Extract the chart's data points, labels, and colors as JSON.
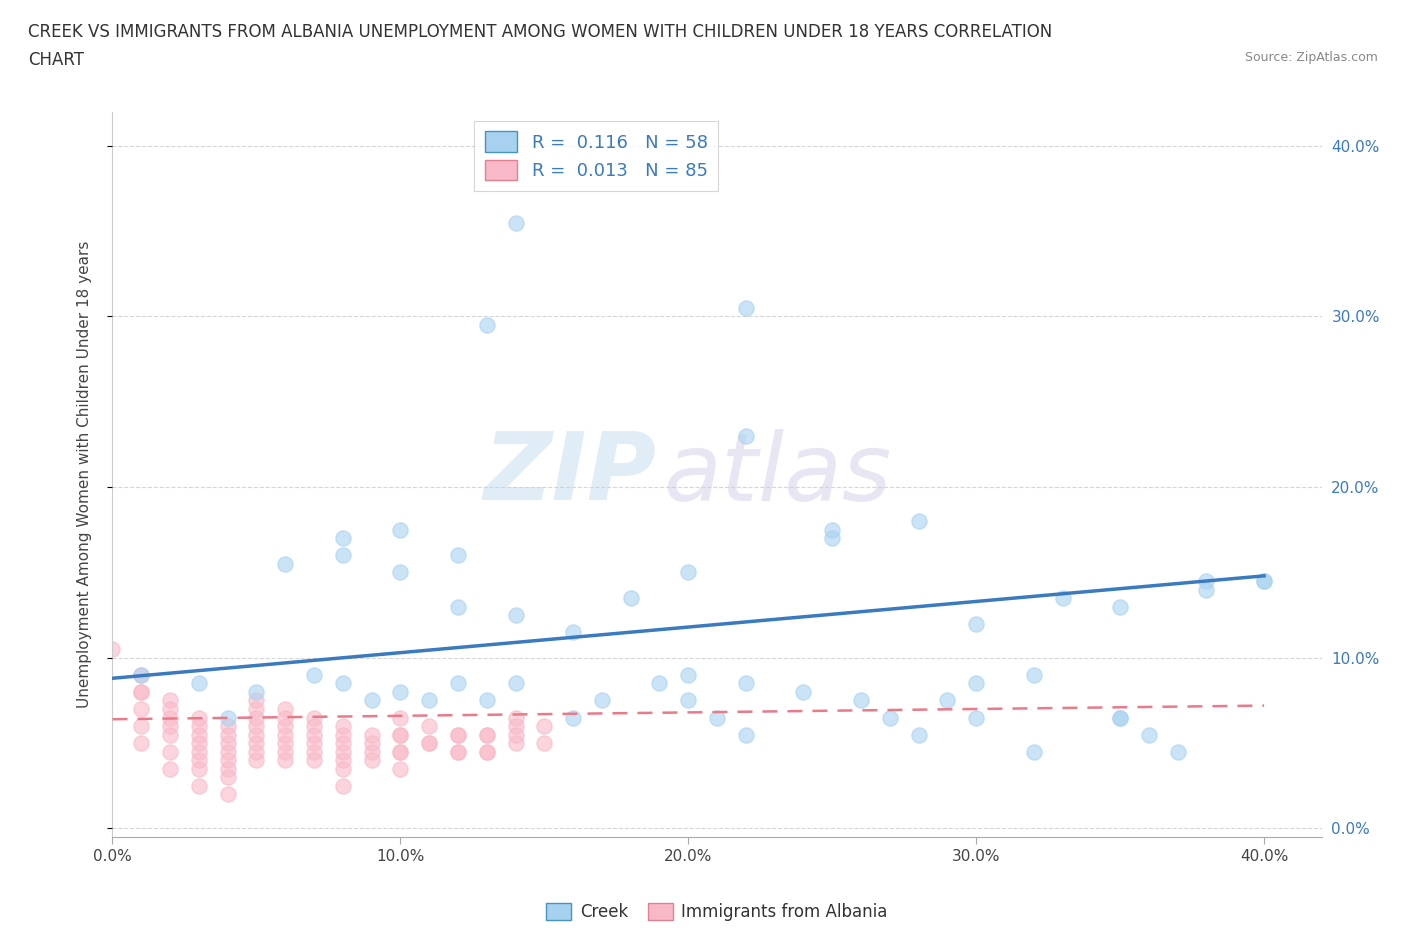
{
  "title_line1": "CREEK VS IMMIGRANTS FROM ALBANIA UNEMPLOYMENT AMONG WOMEN WITH CHILDREN UNDER 18 YEARS CORRELATION",
  "title_line2": "CHART",
  "source": "Source: ZipAtlas.com",
  "ylabel": "Unemployment Among Women with Children Under 18 years",
  "xlim": [
    0.0,
    0.42
  ],
  "ylim": [
    -0.005,
    0.42
  ],
  "yticks": [
    0.0,
    0.1,
    0.2,
    0.3,
    0.4
  ],
  "xticks": [
    0.0,
    0.1,
    0.2,
    0.3,
    0.4
  ],
  "creek_R": 0.116,
  "creek_N": 58,
  "albania_R": 0.013,
  "albania_N": 85,
  "creek_color": "#a8d1f0",
  "albania_color": "#f9b8c8",
  "trendline_creek_color": "#3a7abf",
  "trendline_albania_color": "#e87a8a",
  "background_color": "#ffffff",
  "watermark_zip": "ZIP",
  "watermark_atlas": "atlas",
  "legend_text_color": "#3a7abf",
  "right_tick_color": "#3a7abf",
  "creek_x": [
    0.14,
    0.22,
    0.22,
    0.13,
    0.01,
    0.03,
    0.04,
    0.05,
    0.07,
    0.08,
    0.09,
    0.1,
    0.11,
    0.12,
    0.12,
    0.13,
    0.14,
    0.16,
    0.17,
    0.19,
    0.2,
    0.21,
    0.22,
    0.27,
    0.28,
    0.29,
    0.3,
    0.32,
    0.33,
    0.35,
    0.36,
    0.37,
    0.38,
    0.4,
    0.06,
    0.08,
    0.1,
    0.12,
    0.14,
    0.16,
    0.18,
    0.2,
    0.25,
    0.3,
    0.35,
    0.38,
    0.4,
    0.25,
    0.28,
    0.3,
    0.32,
    0.2,
    0.22,
    0.24,
    0.26,
    0.08,
    0.1,
    0.35
  ],
  "creek_y": [
    0.355,
    0.305,
    0.23,
    0.295,
    0.09,
    0.085,
    0.065,
    0.08,
    0.09,
    0.085,
    0.075,
    0.08,
    0.075,
    0.085,
    0.16,
    0.075,
    0.085,
    0.065,
    0.075,
    0.085,
    0.075,
    0.065,
    0.055,
    0.065,
    0.055,
    0.075,
    0.065,
    0.045,
    0.135,
    0.065,
    0.055,
    0.045,
    0.145,
    0.145,
    0.155,
    0.17,
    0.15,
    0.13,
    0.125,
    0.115,
    0.135,
    0.15,
    0.175,
    0.12,
    0.13,
    0.14,
    0.145,
    0.17,
    0.18,
    0.085,
    0.09,
    0.09,
    0.085,
    0.08,
    0.075,
    0.16,
    0.175,
    0.065
  ],
  "albania_x": [
    0.0,
    0.01,
    0.01,
    0.01,
    0.01,
    0.02,
    0.02,
    0.02,
    0.02,
    0.02,
    0.03,
    0.03,
    0.03,
    0.03,
    0.03,
    0.04,
    0.04,
    0.04,
    0.04,
    0.04,
    0.05,
    0.05,
    0.05,
    0.05,
    0.06,
    0.06,
    0.06,
    0.06,
    0.07,
    0.07,
    0.07,
    0.08,
    0.08,
    0.08,
    0.09,
    0.09,
    0.1,
    0.1,
    0.1,
    0.11,
    0.11,
    0.12,
    0.12,
    0.13,
    0.13,
    0.14,
    0.14,
    0.15,
    0.15,
    0.01,
    0.01,
    0.02,
    0.02,
    0.03,
    0.03,
    0.03,
    0.04,
    0.04,
    0.04,
    0.05,
    0.05,
    0.05,
    0.05,
    0.06,
    0.06,
    0.06,
    0.07,
    0.07,
    0.07,
    0.08,
    0.08,
    0.08,
    0.08,
    0.09,
    0.09,
    0.1,
    0.1,
    0.1,
    0.11,
    0.12,
    0.12,
    0.13,
    0.13,
    0.14,
    0.14
  ],
  "albania_y": [
    0.105,
    0.08,
    0.07,
    0.06,
    0.05,
    0.075,
    0.065,
    0.055,
    0.045,
    0.035,
    0.065,
    0.055,
    0.045,
    0.035,
    0.025,
    0.06,
    0.05,
    0.04,
    0.03,
    0.02,
    0.075,
    0.065,
    0.055,
    0.045,
    0.07,
    0.06,
    0.05,
    0.04,
    0.065,
    0.055,
    0.045,
    0.06,
    0.05,
    0.04,
    0.055,
    0.045,
    0.065,
    0.055,
    0.045,
    0.06,
    0.05,
    0.055,
    0.045,
    0.055,
    0.045,
    0.065,
    0.055,
    0.06,
    0.05,
    0.09,
    0.08,
    0.07,
    0.06,
    0.06,
    0.05,
    0.04,
    0.055,
    0.045,
    0.035,
    0.07,
    0.06,
    0.05,
    0.04,
    0.065,
    0.055,
    0.045,
    0.06,
    0.05,
    0.04,
    0.055,
    0.045,
    0.035,
    0.025,
    0.05,
    0.04,
    0.055,
    0.045,
    0.035,
    0.05,
    0.055,
    0.045,
    0.055,
    0.045,
    0.06,
    0.05
  ],
  "creek_trend_x0": 0.0,
  "creek_trend_y0": 0.088,
  "creek_trend_x1": 0.4,
  "creek_trend_y1": 0.148,
  "albania_trend_x0": 0.0,
  "albania_trend_y0": 0.064,
  "albania_trend_x1": 0.4,
  "albania_trend_y1": 0.072
}
